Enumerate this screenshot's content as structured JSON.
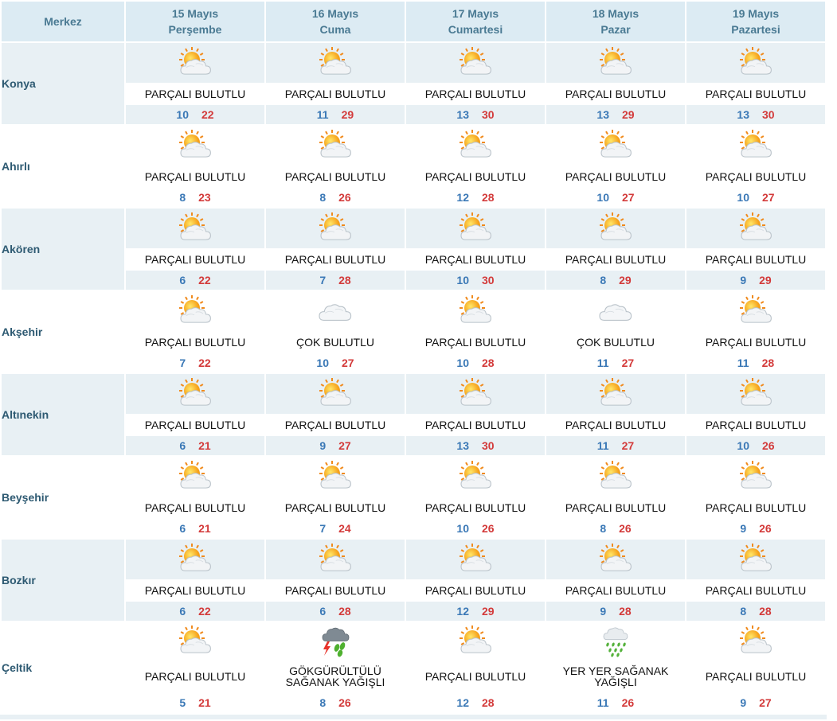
{
  "header": {
    "merkez": "Merkez",
    "days": [
      {
        "date": "15 Mayıs",
        "weekday": "Perşembe"
      },
      {
        "date": "16 Mayıs",
        "weekday": "Cuma"
      },
      {
        "date": "17 Mayıs",
        "weekday": "Cumartesi"
      },
      {
        "date": "18 Mayıs",
        "weekday": "Pazar"
      },
      {
        "date": "19 Mayıs",
        "weekday": "Pazartesi"
      }
    ]
  },
  "rows": [
    {
      "city": "Konya",
      "days": [
        {
          "desc": "PARÇALI BULUTLU",
          "icon": "partly-cloudy-icon",
          "min": "10",
          "max": "22"
        },
        {
          "desc": "PARÇALI BULUTLU",
          "icon": "partly-cloudy-icon",
          "min": "11",
          "max": "29"
        },
        {
          "desc": "PARÇALI BULUTLU",
          "icon": "partly-cloudy-icon",
          "min": "13",
          "max": "30"
        },
        {
          "desc": "PARÇALI BULUTLU",
          "icon": "partly-cloudy-icon",
          "min": "13",
          "max": "29"
        },
        {
          "desc": "PARÇALI BULUTLU",
          "icon": "partly-cloudy-icon",
          "min": "13",
          "max": "30"
        }
      ]
    },
    {
      "city": "Ahırlı",
      "days": [
        {
          "desc": "PARÇALI BULUTLU",
          "icon": "partly-cloudy-icon",
          "min": "8",
          "max": "23"
        },
        {
          "desc": "PARÇALI BULUTLU",
          "icon": "partly-cloudy-icon",
          "min": "8",
          "max": "26"
        },
        {
          "desc": "PARÇALI BULUTLU",
          "icon": "partly-cloudy-icon",
          "min": "12",
          "max": "28"
        },
        {
          "desc": "PARÇALI BULUTLU",
          "icon": "partly-cloudy-icon",
          "min": "10",
          "max": "27"
        },
        {
          "desc": "PARÇALI BULUTLU",
          "icon": "partly-cloudy-icon",
          "min": "10",
          "max": "27"
        }
      ]
    },
    {
      "city": "Akören",
      "days": [
        {
          "desc": "PARÇALI BULUTLU",
          "icon": "partly-cloudy-icon",
          "min": "6",
          "max": "22"
        },
        {
          "desc": "PARÇALI BULUTLU",
          "icon": "partly-cloudy-icon",
          "min": "7",
          "max": "28"
        },
        {
          "desc": "PARÇALI BULUTLU",
          "icon": "partly-cloudy-icon",
          "min": "10",
          "max": "30"
        },
        {
          "desc": "PARÇALI BULUTLU",
          "icon": "partly-cloudy-icon",
          "min": "8",
          "max": "29"
        },
        {
          "desc": "PARÇALI BULUTLU",
          "icon": "partly-cloudy-icon",
          "min": "9",
          "max": "29"
        }
      ]
    },
    {
      "city": "Akşehir",
      "days": [
        {
          "desc": "PARÇALI BULUTLU",
          "icon": "partly-cloudy-icon",
          "min": "7",
          "max": "22"
        },
        {
          "desc": "ÇOK BULUTLU",
          "icon": "cloudy-icon",
          "min": "10",
          "max": "27"
        },
        {
          "desc": "PARÇALI BULUTLU",
          "icon": "partly-cloudy-icon",
          "min": "10",
          "max": "28"
        },
        {
          "desc": "ÇOK BULUTLU",
          "icon": "cloudy-icon",
          "min": "11",
          "max": "27"
        },
        {
          "desc": "PARÇALI BULUTLU",
          "icon": "partly-cloudy-icon",
          "min": "11",
          "max": "28"
        }
      ]
    },
    {
      "city": "Altınekin",
      "days": [
        {
          "desc": "PARÇALI BULUTLU",
          "icon": "partly-cloudy-icon",
          "min": "6",
          "max": "21"
        },
        {
          "desc": "PARÇALI BULUTLU",
          "icon": "partly-cloudy-icon",
          "min": "9",
          "max": "27"
        },
        {
          "desc": "PARÇALI BULUTLU",
          "icon": "partly-cloudy-icon",
          "min": "13",
          "max": "30"
        },
        {
          "desc": "PARÇALI BULUTLU",
          "icon": "partly-cloudy-icon",
          "min": "11",
          "max": "27"
        },
        {
          "desc": "PARÇALI BULUTLU",
          "icon": "partly-cloudy-icon",
          "min": "10",
          "max": "26"
        }
      ]
    },
    {
      "city": "Beyşehir",
      "days": [
        {
          "desc": "PARÇALI BULUTLU",
          "icon": "partly-cloudy-icon",
          "min": "6",
          "max": "21"
        },
        {
          "desc": "PARÇALI BULUTLU",
          "icon": "partly-cloudy-icon",
          "min": "7",
          "max": "24"
        },
        {
          "desc": "PARÇALI BULUTLU",
          "icon": "partly-cloudy-icon",
          "min": "10",
          "max": "26"
        },
        {
          "desc": "PARÇALI BULUTLU",
          "icon": "partly-cloudy-icon",
          "min": "8",
          "max": "26"
        },
        {
          "desc": "PARÇALI BULUTLU",
          "icon": "partly-cloudy-icon",
          "min": "9",
          "max": "26"
        }
      ]
    },
    {
      "city": "Bozkır",
      "days": [
        {
          "desc": "PARÇALI BULUTLU",
          "icon": "partly-cloudy-icon",
          "min": "6",
          "max": "22"
        },
        {
          "desc": "PARÇALI BULUTLU",
          "icon": "partly-cloudy-icon",
          "min": "6",
          "max": "28"
        },
        {
          "desc": "PARÇALI BULUTLU",
          "icon": "partly-cloudy-icon",
          "min": "12",
          "max": "29"
        },
        {
          "desc": "PARÇALI BULUTLU",
          "icon": "partly-cloudy-icon",
          "min": "9",
          "max": "28"
        },
        {
          "desc": "PARÇALI BULUTLU",
          "icon": "partly-cloudy-icon",
          "min": "8",
          "max": "28"
        }
      ]
    },
    {
      "city": "Çeltik",
      "days": [
        {
          "desc": "PARÇALI BULUTLU",
          "icon": "partly-cloudy-icon",
          "min": "5",
          "max": "21"
        },
        {
          "desc": "GÖKGÜRÜLTÜLÜ SAĞANAK YAĞIŞLI",
          "icon": "thunderstorm-showers-icon",
          "min": "8",
          "max": "26"
        },
        {
          "desc": "PARÇALI BULUTLU",
          "icon": "partly-cloudy-icon",
          "min": "12",
          "max": "28"
        },
        {
          "desc": "YER YER SAĞANAK YAĞIŞLI",
          "icon": "showers-icon",
          "min": "11",
          "max": "26"
        },
        {
          "desc": "PARÇALI BULUTLU",
          "icon": "partly-cloudy-icon",
          "min": "9",
          "max": "27"
        }
      ]
    }
  ],
  "colors": {
    "header_bg": "#dcebf3",
    "shade_bg": "#e8f0f4",
    "min_temp": "#3a78b6",
    "max_temp": "#d33a3a",
    "city_text": "#2e5a72"
  }
}
